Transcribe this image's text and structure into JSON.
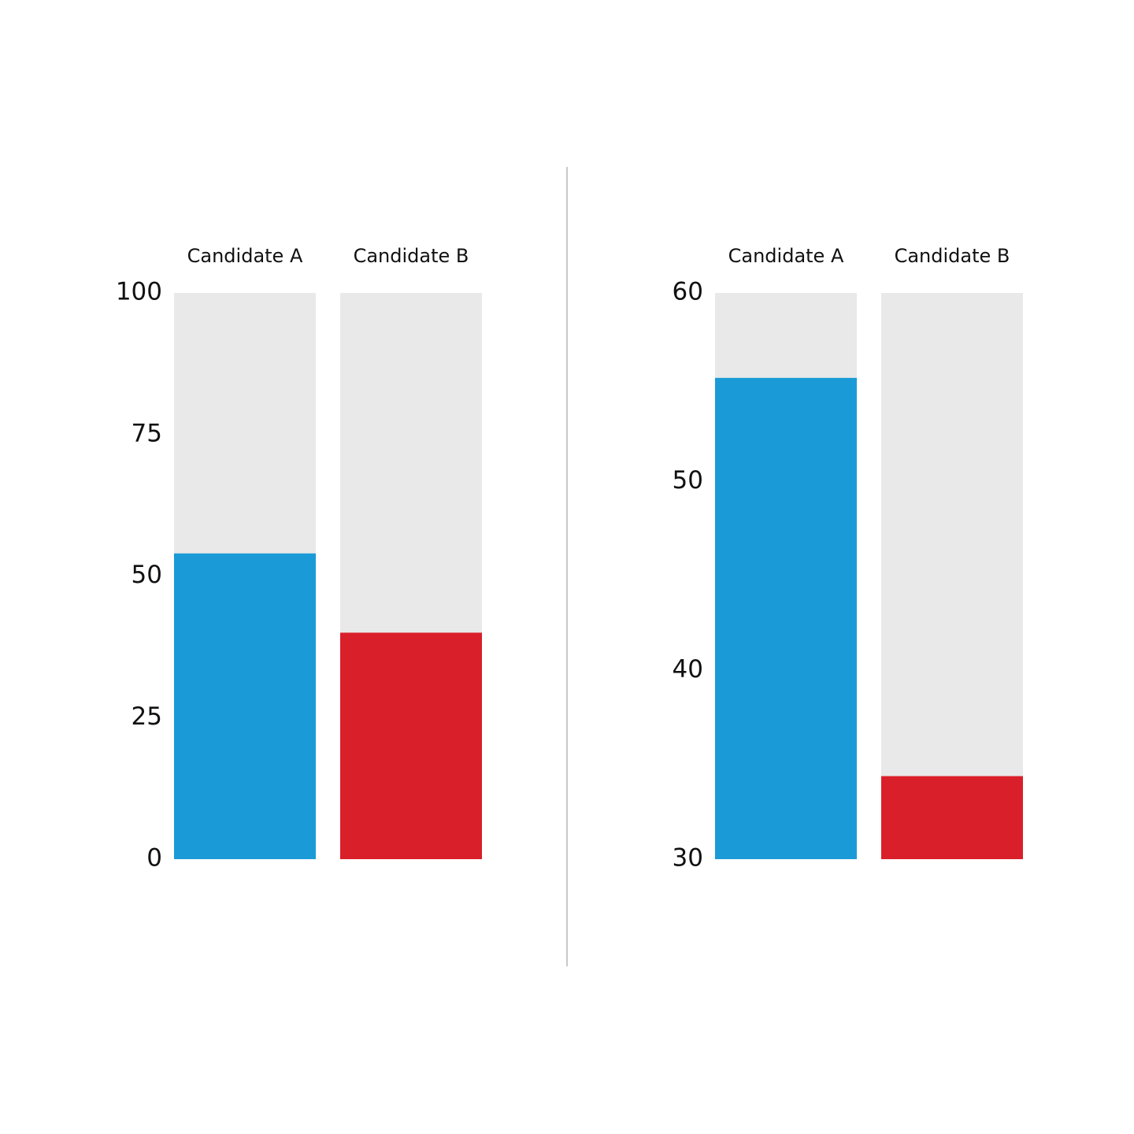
{
  "chart_data": [
    {
      "type": "bar",
      "categories": [
        "Candidate A",
        "Candidate B"
      ],
      "values": [
        54,
        40
      ],
      "colors": [
        "#1a9bd7",
        "#d91f2a"
      ],
      "ylim": [
        0,
        100
      ],
      "yticks": [
        0,
        25,
        50,
        75,
        100
      ]
    },
    {
      "type": "bar",
      "categories": [
        "Candidate A",
        "Candidate B"
      ],
      "values": [
        55.5,
        34.4
      ],
      "colors": [
        "#1a9bd7",
        "#d91f2a"
      ],
      "ylim": [
        30,
        60
      ],
      "yticks": [
        30,
        40,
        50,
        60
      ]
    }
  ]
}
